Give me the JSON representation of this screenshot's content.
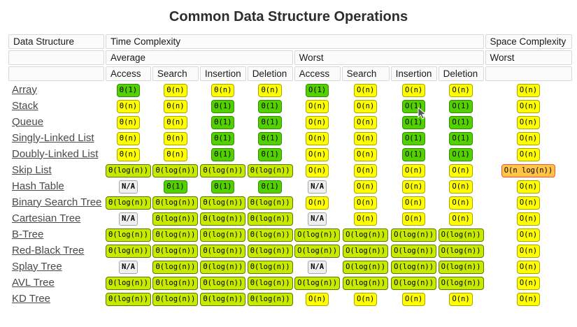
{
  "title": "Common Data Structure Operations",
  "colors": {
    "excellent_bg": "#53d000",
    "excellent_border": "#2f8f00",
    "good_bg": "#c8ea00",
    "good_border": "#557a00",
    "fair_bg": "#ffff00",
    "fair_border": "#a8a400",
    "bad_bg": "#ffc543",
    "bad_border": "#ff4a41",
    "na_bg": "#efefef",
    "na_border": "#a5a5a5"
  },
  "table": {
    "headers": {
      "data_structure": "Data Structure",
      "time_complexity": "Time Complexity",
      "space_complexity": "Space Complexity",
      "average": "Average",
      "worst_time": "Worst",
      "worst_space": "Worst",
      "ops": [
        "Access",
        "Search",
        "Insertion",
        "Deletion"
      ]
    },
    "rows": [
      {
        "name": "Array",
        "cells": [
          {
            "text": "Θ(1)",
            "grade": "excellent"
          },
          {
            "text": "Θ(n)",
            "grade": "fair"
          },
          {
            "text": "Θ(n)",
            "grade": "fair"
          },
          {
            "text": "Θ(n)",
            "grade": "fair"
          },
          {
            "text": "O(1)",
            "grade": "excellent"
          },
          {
            "text": "O(n)",
            "grade": "fair"
          },
          {
            "text": "O(n)",
            "grade": "fair"
          },
          {
            "text": "O(n)",
            "grade": "fair"
          },
          {
            "text": "O(n)",
            "grade": "fair"
          }
        ]
      },
      {
        "name": "Stack",
        "cells": [
          {
            "text": "Θ(n)",
            "grade": "fair"
          },
          {
            "text": "Θ(n)",
            "grade": "fair"
          },
          {
            "text": "Θ(1)",
            "grade": "excellent"
          },
          {
            "text": "Θ(1)",
            "grade": "excellent"
          },
          {
            "text": "O(n)",
            "grade": "fair"
          },
          {
            "text": "O(n)",
            "grade": "fair"
          },
          {
            "text": "O(1)",
            "grade": "excellent"
          },
          {
            "text": "O(1)",
            "grade": "excellent"
          },
          {
            "text": "O(n)",
            "grade": "fair"
          }
        ]
      },
      {
        "name": "Queue",
        "cells": [
          {
            "text": "Θ(n)",
            "grade": "fair"
          },
          {
            "text": "Θ(n)",
            "grade": "fair"
          },
          {
            "text": "Θ(1)",
            "grade": "excellent"
          },
          {
            "text": "Θ(1)",
            "grade": "excellent"
          },
          {
            "text": "O(n)",
            "grade": "fair"
          },
          {
            "text": "O(n)",
            "grade": "fair"
          },
          {
            "text": "O(1)",
            "grade": "excellent"
          },
          {
            "text": "O(1)",
            "grade": "excellent"
          },
          {
            "text": "O(n)",
            "grade": "fair"
          }
        ]
      },
      {
        "name": "Singly-Linked List",
        "cells": [
          {
            "text": "Θ(n)",
            "grade": "fair"
          },
          {
            "text": "Θ(n)",
            "grade": "fair"
          },
          {
            "text": "Θ(1)",
            "grade": "excellent"
          },
          {
            "text": "Θ(1)",
            "grade": "excellent"
          },
          {
            "text": "O(n)",
            "grade": "fair"
          },
          {
            "text": "O(n)",
            "grade": "fair"
          },
          {
            "text": "O(1)",
            "grade": "excellent"
          },
          {
            "text": "O(1)",
            "grade": "excellent"
          },
          {
            "text": "O(n)",
            "grade": "fair"
          }
        ]
      },
      {
        "name": "Doubly-Linked List",
        "cells": [
          {
            "text": "Θ(n)",
            "grade": "fair"
          },
          {
            "text": "Θ(n)",
            "grade": "fair"
          },
          {
            "text": "Θ(1)",
            "grade": "excellent"
          },
          {
            "text": "Θ(1)",
            "grade": "excellent"
          },
          {
            "text": "O(n)",
            "grade": "fair"
          },
          {
            "text": "O(n)",
            "grade": "fair"
          },
          {
            "text": "O(1)",
            "grade": "excellent"
          },
          {
            "text": "O(1)",
            "grade": "excellent"
          },
          {
            "text": "O(n)",
            "grade": "fair"
          }
        ]
      },
      {
        "name": "Skip List",
        "cells": [
          {
            "text": "Θ(log(n))",
            "grade": "good"
          },
          {
            "text": "Θ(log(n))",
            "grade": "good"
          },
          {
            "text": "Θ(log(n))",
            "grade": "good"
          },
          {
            "text": "Θ(log(n))",
            "grade": "good"
          },
          {
            "text": "O(n)",
            "grade": "fair"
          },
          {
            "text": "O(n)",
            "grade": "fair"
          },
          {
            "text": "O(n)",
            "grade": "fair"
          },
          {
            "text": "O(n)",
            "grade": "fair"
          },
          {
            "text": "O(n log(n))",
            "grade": "bad"
          }
        ]
      },
      {
        "name": "Hash Table",
        "cells": [
          {
            "text": "N/A",
            "grade": "na"
          },
          {
            "text": "Θ(1)",
            "grade": "excellent"
          },
          {
            "text": "Θ(1)",
            "grade": "excellent"
          },
          {
            "text": "Θ(1)",
            "grade": "excellent"
          },
          {
            "text": "N/A",
            "grade": "na"
          },
          {
            "text": "O(n)",
            "grade": "fair"
          },
          {
            "text": "O(n)",
            "grade": "fair"
          },
          {
            "text": "O(n)",
            "grade": "fair"
          },
          {
            "text": "O(n)",
            "grade": "fair"
          }
        ]
      },
      {
        "name": "Binary Search Tree",
        "cells": [
          {
            "text": "Θ(log(n))",
            "grade": "good"
          },
          {
            "text": "Θ(log(n))",
            "grade": "good"
          },
          {
            "text": "Θ(log(n))",
            "grade": "good"
          },
          {
            "text": "Θ(log(n))",
            "grade": "good"
          },
          {
            "text": "O(n)",
            "grade": "fair"
          },
          {
            "text": "O(n)",
            "grade": "fair"
          },
          {
            "text": "O(n)",
            "grade": "fair"
          },
          {
            "text": "O(n)",
            "grade": "fair"
          },
          {
            "text": "O(n)",
            "grade": "fair"
          }
        ]
      },
      {
        "name": "Cartesian Tree",
        "cells": [
          {
            "text": "N/A",
            "grade": "na"
          },
          {
            "text": "Θ(log(n))",
            "grade": "good"
          },
          {
            "text": "Θ(log(n))",
            "grade": "good"
          },
          {
            "text": "Θ(log(n))",
            "grade": "good"
          },
          {
            "text": "N/A",
            "grade": "na"
          },
          {
            "text": "O(n)",
            "grade": "fair"
          },
          {
            "text": "O(n)",
            "grade": "fair"
          },
          {
            "text": "O(n)",
            "grade": "fair"
          },
          {
            "text": "O(n)",
            "grade": "fair"
          }
        ]
      },
      {
        "name": "B-Tree",
        "cells": [
          {
            "text": "Θ(log(n))",
            "grade": "good"
          },
          {
            "text": "Θ(log(n))",
            "grade": "good"
          },
          {
            "text": "Θ(log(n))",
            "grade": "good"
          },
          {
            "text": "Θ(log(n))",
            "grade": "good"
          },
          {
            "text": "O(log(n))",
            "grade": "good"
          },
          {
            "text": "O(log(n))",
            "grade": "good"
          },
          {
            "text": "O(log(n))",
            "grade": "good"
          },
          {
            "text": "O(log(n))",
            "grade": "good"
          },
          {
            "text": "O(n)",
            "grade": "fair"
          }
        ]
      },
      {
        "name": "Red-Black Tree",
        "cells": [
          {
            "text": "Θ(log(n))",
            "grade": "good"
          },
          {
            "text": "Θ(log(n))",
            "grade": "good"
          },
          {
            "text": "Θ(log(n))",
            "grade": "good"
          },
          {
            "text": "Θ(log(n))",
            "grade": "good"
          },
          {
            "text": "O(log(n))",
            "grade": "good"
          },
          {
            "text": "O(log(n))",
            "grade": "good"
          },
          {
            "text": "O(log(n))",
            "grade": "good"
          },
          {
            "text": "O(log(n))",
            "grade": "good"
          },
          {
            "text": "O(n)",
            "grade": "fair"
          }
        ]
      },
      {
        "name": "Splay Tree",
        "cells": [
          {
            "text": "N/A",
            "grade": "na"
          },
          {
            "text": "Θ(log(n))",
            "grade": "good"
          },
          {
            "text": "Θ(log(n))",
            "grade": "good"
          },
          {
            "text": "Θ(log(n))",
            "grade": "good"
          },
          {
            "text": "N/A",
            "grade": "na"
          },
          {
            "text": "O(log(n))",
            "grade": "good"
          },
          {
            "text": "O(log(n))",
            "grade": "good"
          },
          {
            "text": "O(log(n))",
            "grade": "good"
          },
          {
            "text": "O(n)",
            "grade": "fair"
          }
        ]
      },
      {
        "name": "AVL Tree",
        "cells": [
          {
            "text": "Θ(log(n))",
            "grade": "good"
          },
          {
            "text": "Θ(log(n))",
            "grade": "good"
          },
          {
            "text": "Θ(log(n))",
            "grade": "good"
          },
          {
            "text": "Θ(log(n))",
            "grade": "good"
          },
          {
            "text": "O(log(n))",
            "grade": "good"
          },
          {
            "text": "O(log(n))",
            "grade": "good"
          },
          {
            "text": "O(log(n))",
            "grade": "good"
          },
          {
            "text": "O(log(n))",
            "grade": "good"
          },
          {
            "text": "O(n)",
            "grade": "fair"
          }
        ]
      },
      {
        "name": "KD Tree",
        "cells": [
          {
            "text": "Θ(log(n))",
            "grade": "good"
          },
          {
            "text": "Θ(log(n))",
            "grade": "good"
          },
          {
            "text": "Θ(log(n))",
            "grade": "good"
          },
          {
            "text": "Θ(log(n))",
            "grade": "good"
          },
          {
            "text": "O(n)",
            "grade": "fair"
          },
          {
            "text": "O(n)",
            "grade": "fair"
          },
          {
            "text": "O(n)",
            "grade": "fair"
          },
          {
            "text": "O(n)",
            "grade": "fair"
          },
          {
            "text": "O(n)",
            "grade": "fair"
          }
        ]
      }
    ]
  }
}
